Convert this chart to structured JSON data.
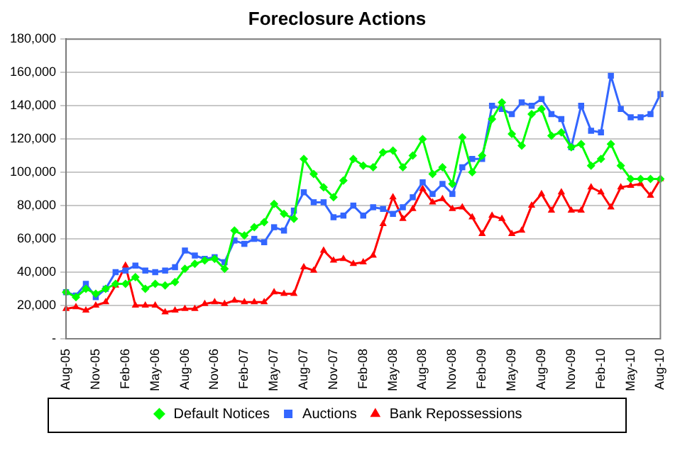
{
  "chart_data": {
    "type": "line",
    "title": "Foreclosure Actions",
    "categories": [
      "Aug-05",
      null,
      null,
      "Nov-05",
      null,
      null,
      "Feb-06",
      null,
      null,
      "May-06",
      null,
      null,
      "Aug-06",
      null,
      null,
      "Nov-06",
      null,
      null,
      "Feb-07",
      null,
      null,
      "May-07",
      null,
      null,
      "Aug-07",
      null,
      null,
      "Nov-07",
      null,
      null,
      "Feb-08",
      null,
      null,
      "May-08",
      null,
      null,
      "Aug-08",
      null,
      null,
      "Nov-08",
      null,
      null,
      "Feb-09",
      null,
      null,
      "May-09",
      null,
      null,
      "Aug-09",
      null,
      null,
      "Nov-09",
      null,
      null,
      "Feb-10",
      null,
      null,
      "May-10",
      null,
      null,
      "Aug-10"
    ],
    "series": [
      {
        "name": "Default Notices",
        "color": "#00ff00",
        "marker": "diamond",
        "values": [
          28000,
          25000,
          30000,
          27000,
          30000,
          33000,
          33000,
          37000,
          30000,
          33000,
          32000,
          34000,
          42000,
          45000,
          47000,
          48000,
          42000,
          65000,
          62000,
          67000,
          70000,
          81000,
          75000,
          72000,
          108000,
          99000,
          91000,
          85000,
          95000,
          108000,
          104000,
          103000,
          112000,
          113000,
          103000,
          110000,
          120000,
          99000,
          103000,
          93000,
          121000,
          100000,
          110000,
          132000,
          142000,
          123000,
          116000,
          135000,
          138000,
          122000,
          124000,
          115000,
          117000,
          104000,
          108000,
          117000,
          104000,
          96000,
          96000,
          96000,
          96000
        ]
      },
      {
        "name": "Auctions",
        "color": "#3366ff",
        "marker": "square",
        "values": [
          28000,
          26000,
          33000,
          25000,
          30000,
          40000,
          41000,
          44000,
          41000,
          40000,
          41000,
          43000,
          53000,
          50000,
          48000,
          49000,
          46000,
          59000,
          57000,
          60000,
          58000,
          67000,
          65000,
          77000,
          88000,
          82000,
          82000,
          73000,
          74000,
          80000,
          74000,
          79000,
          78000,
          75000,
          79000,
          85000,
          94000,
          87000,
          93000,
          87000,
          103000,
          108000,
          108000,
          140000,
          138000,
          135000,
          142000,
          140000,
          144000,
          135000,
          132000,
          115000,
          140000,
          125000,
          124000,
          158000,
          138000,
          133000,
          133000,
          135000,
          147000
        ]
      },
      {
        "name": "Bank Repossessions",
        "color": "#ff0000",
        "marker": "triangle",
        "values": [
          18000,
          19000,
          17000,
          20000,
          22000,
          32000,
          44000,
          20000,
          20000,
          20000,
          16000,
          17000,
          18000,
          18000,
          21000,
          22000,
          21000,
          23000,
          22000,
          22000,
          22000,
          28000,
          27000,
          27000,
          43000,
          41000,
          53000,
          47000,
          48000,
          45000,
          46000,
          50000,
          69000,
          85000,
          72000,
          78000,
          90000,
          82000,
          84000,
          78000,
          79000,
          73000,
          63000,
          74000,
          72000,
          63000,
          65000,
          80000,
          87000,
          77000,
          88000,
          77000,
          77000,
          91000,
          88000,
          79000,
          91000,
          92000,
          93000,
          86000,
          96000
        ]
      }
    ],
    "ylim": [
      0,
      180000
    ],
    "yticks": [
      {
        "value": 0,
        "label": "-"
      },
      {
        "value": 20000,
        "label": "20,000"
      },
      {
        "value": 40000,
        "label": "40,000"
      },
      {
        "value": 60000,
        "label": "60,000"
      },
      {
        "value": 80000,
        "label": "80,000"
      },
      {
        "value": 100000,
        "label": "100,000"
      },
      {
        "value": 120000,
        "label": "120,000"
      },
      {
        "value": 140000,
        "label": "140,000"
      },
      {
        "value": 160000,
        "label": "160,000"
      },
      {
        "value": 180000,
        "label": "180,000"
      }
    ],
    "grid": "y",
    "legend": "bottom",
    "line_style": "solid"
  }
}
